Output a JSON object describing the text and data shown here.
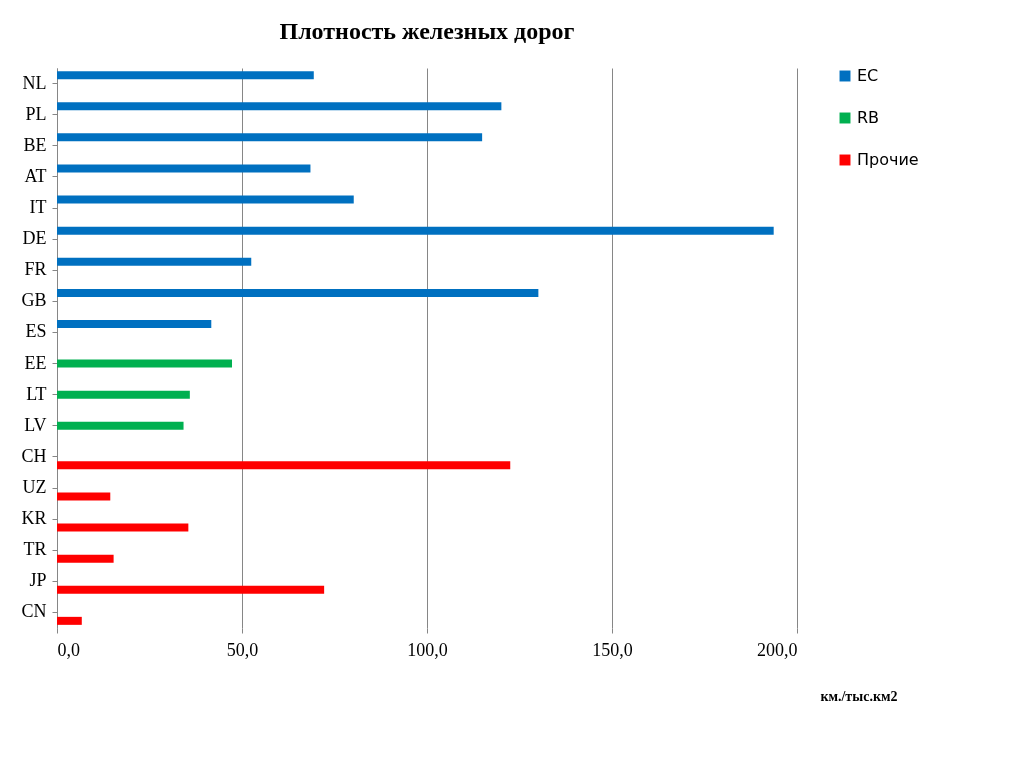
{
  "chart_data": {
    "type": "bar",
    "orientation": "horizontal",
    "title": "Плотность  железных дорог",
    "xlabel": "км./тыс.км2",
    "categories": [
      "NL",
      "PL",
      "BE",
      "AT",
      "IT",
      "DE",
      "FR",
      "GB",
      "ES",
      "EE",
      "LT",
      "LV",
      "CH",
      "UZ",
      "KR",
      "TR",
      "JP",
      "CN"
    ],
    "series": [
      {
        "name": "EC",
        "color": "#0070c0",
        "values": [
          69.4,
          120.1,
          114.9,
          68.5,
          80.2,
          193.7,
          52.5,
          130.1,
          41.7,
          null,
          null,
          null,
          null,
          null,
          null,
          null,
          null,
          null
        ]
      },
      {
        "name": "RB",
        "color": "#00b050",
        "values": [
          null,
          null,
          null,
          null,
          null,
          null,
          null,
          null,
          null,
          47.3,
          35.9,
          34.2,
          null,
          null,
          null,
          null,
          null,
          null
        ]
      },
      {
        "name": "Прочие",
        "color": "#ff0000",
        "values": [
          null,
          null,
          null,
          null,
          null,
          null,
          null,
          null,
          null,
          null,
          null,
          null,
          122.5,
          14.4,
          35.5,
          15.3,
          72.2,
          6.7
        ]
      }
    ],
    "xlim": [
      0,
      200
    ],
    "xticks": [
      {
        "value": 0,
        "label": "0,0"
      },
      {
        "value": 50,
        "label": "50,0"
      },
      {
        "value": 100,
        "label": "100,0"
      },
      {
        "value": 150,
        "label": "150,0"
      },
      {
        "value": 200,
        "label": "200,0"
      }
    ],
    "grid": "x",
    "legend": "right"
  }
}
